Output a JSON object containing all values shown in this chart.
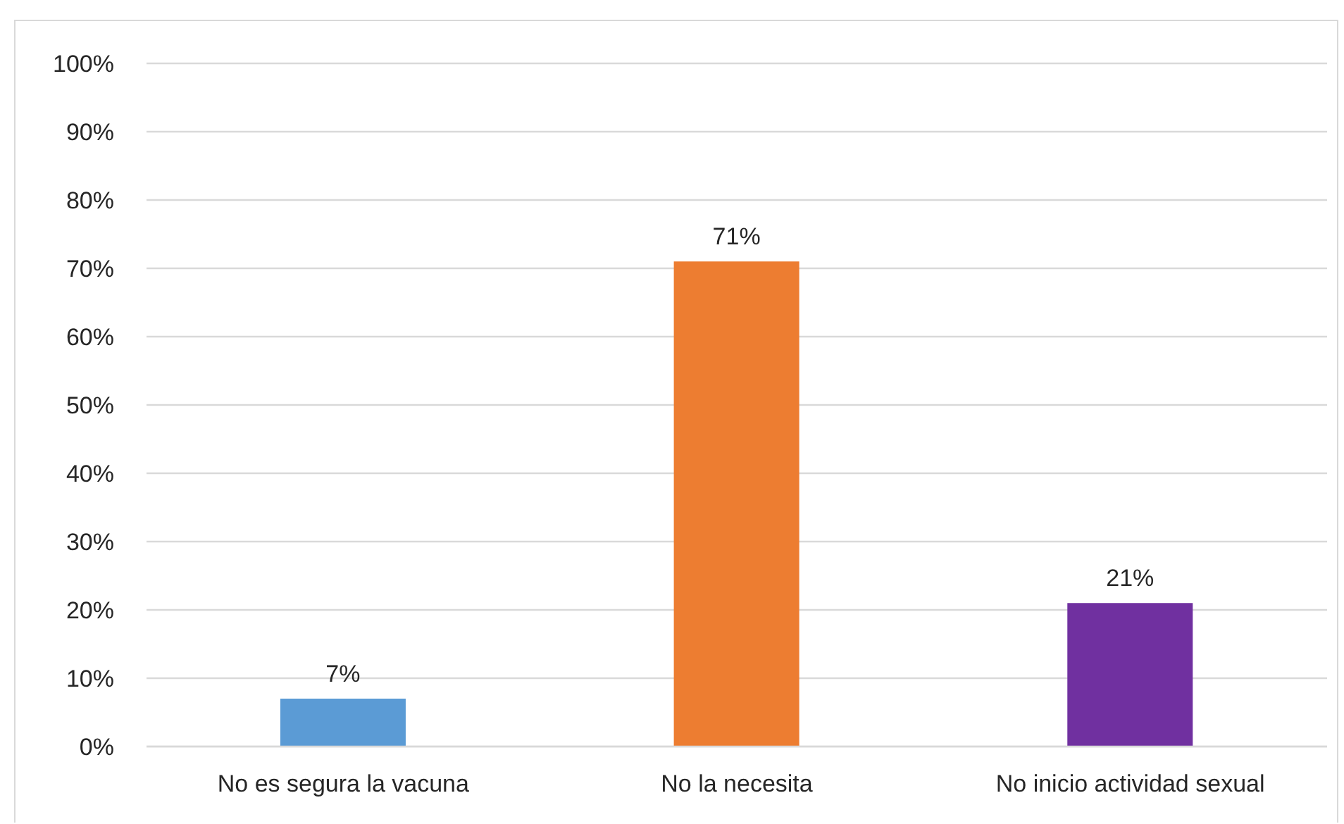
{
  "chart_data": {
    "type": "bar",
    "categories": [
      "No es segura la vacuna",
      "No la necesita",
      "No inicio actividad sexual"
    ],
    "values": [
      7,
      71,
      21
    ],
    "colors": [
      "#5b9bd5",
      "#ed7d31",
      "#7030a0"
    ],
    "value_labels": [
      "7%",
      "71%",
      "21%"
    ],
    "ylim": [
      0,
      100
    ],
    "yticks": [
      {
        "value": 0,
        "label": "0%"
      },
      {
        "value": 10,
        "label": "10%"
      },
      {
        "value": 20,
        "label": "20%"
      },
      {
        "value": 30,
        "label": "30%"
      },
      {
        "value": 40,
        "label": "40%"
      },
      {
        "value": 50,
        "label": "50%"
      },
      {
        "value": 60,
        "label": "60%"
      },
      {
        "value": 70,
        "label": "70%"
      },
      {
        "value": 80,
        "label": "80%"
      },
      {
        "value": 90,
        "label": "90%"
      },
      {
        "value": 100,
        "label": "100%"
      }
    ],
    "grid": "y"
  }
}
